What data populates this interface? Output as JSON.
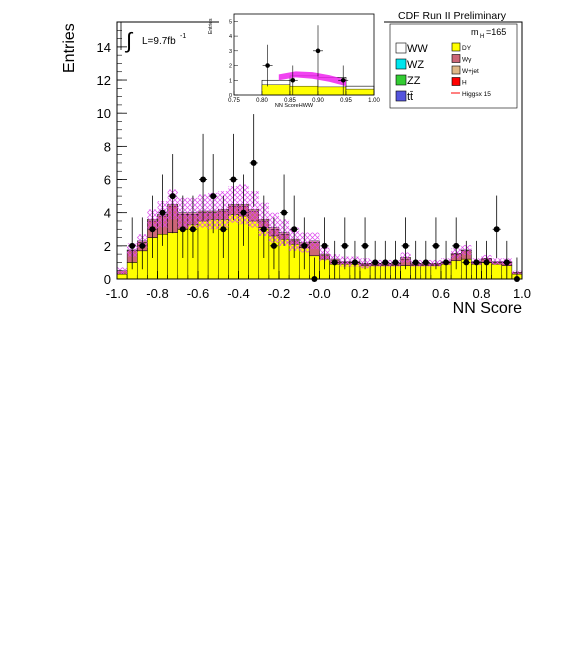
{
  "header": {
    "experiment_label": "CDF Run II Preliminary"
  },
  "chart_data": [
    {
      "type": "bar",
      "id": "main",
      "title": "",
      "xlabel": "NN Score",
      "ylabel": "Entries",
      "xlim": [
        -1.0,
        1.0
      ],
      "ylim": [
        0,
        15.5
      ],
      "xticks": [
        -1.0,
        -0.8,
        -0.6,
        -0.4,
        -0.2,
        -0.0,
        0.2,
        0.4,
        0.6,
        0.8,
        1.0
      ],
      "xtick_labels": [
        "-1.0",
        "-0.8",
        "-0.6",
        "-0.4",
        "-0.2",
        "-0.0",
        "0.2",
        "0.4",
        "0.6",
        "0.8",
        "1.0"
      ],
      "yticks": [
        0,
        2,
        4,
        6,
        8,
        10,
        12,
        14
      ],
      "ytick_labels": [
        "0",
        "2",
        "4",
        "6",
        "8",
        "10",
        "12",
        "14"
      ],
      "grid": false,
      "luminosity_label": "L=9.7fb",
      "luminosity_superscript": "-1",
      "bin_edges": [
        -1.0,
        -0.95,
        -0.9,
        -0.85,
        -0.8,
        -0.75,
        -0.7,
        -0.65,
        -0.6,
        -0.55,
        -0.5,
        -0.45,
        -0.4,
        -0.35,
        -0.3,
        -0.25,
        -0.2,
        -0.15,
        -0.1,
        -0.05,
        0.0,
        0.05,
        0.1,
        0.15,
        0.2,
        0.25,
        0.3,
        0.35,
        0.4,
        0.45,
        0.5,
        0.55,
        0.6,
        0.65,
        0.7,
        0.75,
        0.8,
        0.85,
        0.9,
        0.95,
        1.0
      ],
      "series": [
        {
          "name": "DY",
          "color": "#ffff00",
          "values": [
            0.3,
            1.0,
            1.7,
            2.5,
            2.7,
            2.8,
            3.0,
            3.3,
            3.5,
            3.6,
            3.6,
            3.9,
            3.8,
            3.5,
            3.1,
            2.6,
            2.4,
            2.1,
            1.9,
            1.4,
            1.2,
            0.9,
            0.9,
            0.9,
            0.8,
            0.8,
            0.8,
            0.8,
            0.8,
            0.8,
            0.8,
            0.8,
            0.9,
            1.1,
            1.2,
            0.9,
            1.0,
            0.9,
            0.8,
            0.3
          ]
        },
        {
          "name": "Wγ",
          "color": "#cc6677",
          "values": [
            0.2,
            0.7,
            0.5,
            1.0,
            1.1,
            1.6,
            0.9,
            0.6,
            0.5,
            0.4,
            0.5,
            0.5,
            0.6,
            0.6,
            0.4,
            0.4,
            0.3,
            0.2,
            0.2,
            0.8,
            0.2,
            0.2,
            0.1,
            0.1,
            0.1,
            0.1,
            0.1,
            0.1,
            0.4,
            0.1,
            0.1,
            0.1,
            0.1,
            0.4,
            0.5,
            0.1,
            0.2,
            0.1,
            0.2,
            0.1
          ]
        },
        {
          "name": "W+jet",
          "color": "#deb887",
          "values": [
            0.0,
            0.05,
            0.1,
            0.1,
            0.1,
            0.1,
            0.1,
            0.1,
            0.1,
            0.1,
            0.1,
            0.1,
            0.1,
            0.1,
            0.1,
            0.1,
            0.1,
            0.1,
            0.1,
            0.1,
            0.1,
            0.1,
            0.05,
            0.05,
            0.05,
            0.05,
            0.05,
            0.05,
            0.1,
            0.05,
            0.05,
            0.05,
            0.05,
            0.05,
            0.05,
            0.05,
            0.05,
            0.05,
            0.05,
            0.0
          ]
        },
        {
          "name": "H",
          "color": "#ff0000",
          "values": [
            0,
            0,
            0,
            0,
            0,
            0,
            0,
            0,
            0,
            0,
            0,
            0,
            0,
            0,
            0,
            0,
            0,
            0,
            0,
            0,
            0,
            0,
            0,
            0,
            0,
            0,
            0,
            0,
            0,
            0,
            0,
            0,
            0,
            0,
            0,
            0,
            0,
            0,
            0,
            0
          ]
        }
      ],
      "uncertainty_band": {
        "name": "uncertainty",
        "color": "#dd44ee",
        "values": [
          0.2,
          0.4,
          0.4,
          0.6,
          0.8,
          0.9,
          0.9,
          0.9,
          1.0,
          1.1,
          1.1,
          1.1,
          1.2,
          1.1,
          1.0,
          0.9,
          0.8,
          0.7,
          0.6,
          0.5,
          0.4,
          0.3,
          0.3,
          0.3,
          0.3,
          0.2,
          0.2,
          0.2,
          0.3,
          0.2,
          0.2,
          0.2,
          0.2,
          0.3,
          0.3,
          0.2,
          0.2,
          0.2,
          0.2,
          0.1
        ]
      },
      "data_points": {
        "name": "Data",
        "x": [
          -0.925,
          -0.875,
          -0.825,
          -0.775,
          -0.725,
          -0.675,
          -0.625,
          -0.575,
          -0.525,
          -0.475,
          -0.425,
          -0.375,
          -0.325,
          -0.275,
          -0.225,
          -0.175,
          -0.125,
          -0.075,
          -0.025,
          0.025,
          0.075,
          0.125,
          0.175,
          0.225,
          0.275,
          0.325,
          0.375,
          0.425,
          0.475,
          0.525,
          0.575,
          0.625,
          0.675,
          0.725,
          0.775,
          0.825,
          0.875,
          0.925,
          0.975
        ],
        "y": [
          2,
          2,
          3,
          4,
          5,
          3,
          3,
          6,
          5,
          3,
          6,
          4,
          7,
          3,
          2,
          4,
          3,
          2,
          0,
          2,
          1,
          2,
          1,
          2,
          1,
          1,
          1,
          2,
          1,
          1,
          2,
          1,
          2,
          1,
          1,
          1,
          3,
          1,
          0
        ]
      },
      "legend": {
        "placement": "top-right",
        "mass_label": "m",
        "mass_subscript": "H",
        "mass_value": "=165",
        "col1": [
          {
            "label": "WW",
            "color": "#ffffff"
          },
          {
            "label": "WZ",
            "color": "#00e5ee"
          },
          {
            "label": "ZZ",
            "color": "#33cc33"
          },
          {
            "label": "tt̄",
            "color": "#5555dd"
          }
        ],
        "col2": [
          {
            "label": "DY",
            "color": "#ffff00"
          },
          {
            "label": "Wγ",
            "color": "#cc6677"
          },
          {
            "label": "W+jet",
            "color": "#deb887"
          },
          {
            "label": "H",
            "color": "#ff0000"
          },
          {
            "label": "Higgsx 15",
            "color": "#ff0000",
            "style": "line"
          }
        ]
      }
    },
    {
      "type": "bar",
      "id": "inset",
      "title": "",
      "xlabel": "NN ScoreHWW",
      "ylabel": "Entries",
      "xlim": [
        0.75,
        1.0
      ],
      "ylim": [
        0,
        5.5
      ],
      "xticks": [
        0.75,
        0.8,
        0.85,
        0.9,
        0.95,
        1.0
      ],
      "xtick_labels": [
        "0.75",
        "0.80",
        "0.85",
        "0.90",
        "0.95",
        "1.00"
      ],
      "yticks": [
        0,
        1,
        2,
        3,
        4,
        5
      ],
      "ytick_labels": [
        "0",
        "1",
        "2",
        "3",
        "4",
        "5"
      ],
      "bin_edges": [
        0.75,
        0.8,
        0.85,
        0.9,
        0.95,
        1.0
      ],
      "stack_total": [
        0,
        1.0,
        1.3,
        1.2,
        0.6
      ],
      "dy_values": [
        0,
        0.7,
        0.6,
        0.55,
        0.4
      ],
      "signal_band": [
        {
          "x": 0.83,
          "low": 1.0,
          "high": 1.4
        },
        {
          "x": 0.86,
          "low": 1.2,
          "high": 1.6
        },
        {
          "x": 0.89,
          "low": 1.1,
          "high": 1.55
        },
        {
          "x": 0.92,
          "low": 0.9,
          "high": 1.35
        },
        {
          "x": 0.95,
          "low": 0.6,
          "high": 1.05
        }
      ],
      "data_points": {
        "x": [
          0.81,
          0.855,
          0.9,
          0.945
        ],
        "y": [
          2,
          1,
          3,
          1
        ]
      }
    }
  ]
}
